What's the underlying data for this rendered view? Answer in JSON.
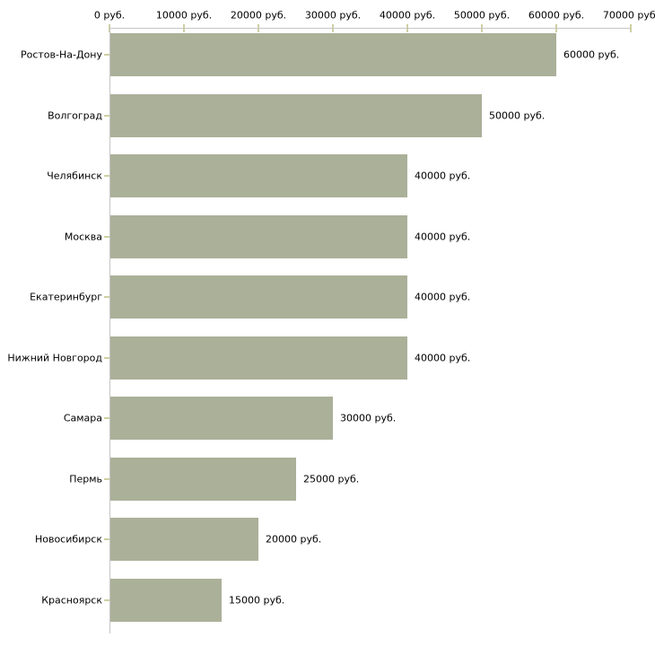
{
  "chart_data": {
    "type": "bar",
    "orientation": "horizontal",
    "title": "",
    "xlabel": "",
    "ylabel": "",
    "unit": "руб.",
    "xlim": [
      0,
      70000
    ],
    "grid": false,
    "legend": false,
    "x_axis_position": "top",
    "x_tick_values": [
      0,
      10000,
      20000,
      30000,
      40000,
      50000,
      60000,
      70000
    ],
    "x_tick_labels": [
      "0 руб.",
      "10000 руб.",
      "20000 руб.",
      "30000 руб.",
      "40000 руб.",
      "50000 руб.",
      "60000 руб.",
      "70000 руб."
    ],
    "categories": [
      "Ростов-На-Дону",
      "Волгоград",
      "Челябинск",
      "Москва",
      "Екатеринбург",
      "Нижний Новгород",
      "Самара",
      "Пермь",
      "Новосибирск",
      "Красноярск"
    ],
    "values": [
      60000,
      50000,
      40000,
      40000,
      40000,
      40000,
      30000,
      25000,
      20000,
      15000
    ],
    "value_labels": [
      "60000 руб.",
      "50000 руб.",
      "40000 руб.",
      "40000 руб.",
      "40000 руб.",
      "40000 руб.",
      "30000 руб.",
      "25000 руб.",
      "20000 руб.",
      "15000 руб."
    ],
    "colors": {
      "bar_fill": "#abb099",
      "axis_line": "#c6c6c6",
      "tick_mark": "#cfd0a3",
      "text": "#000000",
      "background": "#ffffff"
    }
  }
}
